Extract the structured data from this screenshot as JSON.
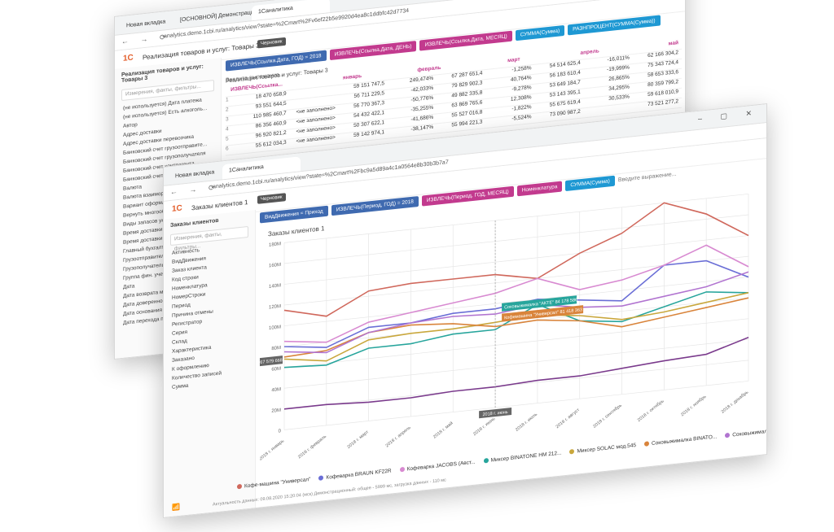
{
  "back_window": {
    "tabs": [
      "Новая вкладка",
      "[ОСНОВНОЙ] Демонстрационн...",
      "1Cаналитика"
    ],
    "url": "analytics.demo.1cbi.ru/analytics/view?state=%2Cmart%2Fv6ef22b5e9920d4ea8c1ddbfc42d7734",
    "app_title": "Реализация товаров и услуг: Товары 3",
    "draft_badge": "Черновик",
    "sidebar_title": "Реализация товаров и услуг: Товары 3",
    "search_placeholder": "Измерения, факты, фильтры...",
    "fields": [
      "(не используется) Дата платежа",
      "(не используется) Есть алкоголь...",
      "Автор",
      "Адрес доставки",
      "Адрес доставки перевозчика",
      "Банковский счет грузоотправите...",
      "Банковский счет грузополучателя",
      "Банковский счет контрагента",
      "Банковский счет организации",
      "Валюта",
      "Валюта взаиморасчетов",
      "Вариант оформления продажи",
      "Вернуть многооборотную тару",
      "Виды запасов указаны вручную",
      "Время доставки по",
      "Время доставки с",
      "Главный бухгалтер",
      "Грузоотправитель",
      "Грузополучатель",
      "Группа фин. учета расчетов",
      "Дата",
      "Дата возврата многооборотной тары",
      "Дата доверенности",
      "Дата основания",
      "Дата перехода права собственности"
    ],
    "chips": [
      {
        "label": "ИЗВЛЕЧЬ(Ссылка.Дата, ГОД) = 2018",
        "color": "blue"
      },
      {
        "label": "ИЗВЛЕЧЬ(Ссылка.Дата, ДЕНЬ)",
        "color": "mag"
      },
      {
        "label": "ИЗВЛЕЧЬ(Ссылка.Дата, МЕСЯЦ)",
        "color": "mag"
      },
      {
        "label": "СУММА(Сумма)",
        "color": "cyan"
      },
      {
        "label": "РАЗНПРОЦЕНТ(СУММА(Сумма))",
        "color": "cyan"
      }
    ],
    "expr_placeholder": "Введите выражение...",
    "pivot_title": "Реализация товаров и услуг: Товары 3",
    "pivot_header": [
      "ИЗВЛЕЧЬ(Ссылка...",
      "январь",
      "февраль",
      "март",
      "апрель",
      "май"
    ],
    "pivot_rows": [
      [
        "1",
        "18 470 658,9",
        "",
        "59 151 747,5",
        "249,474%",
        "67 287 651,4",
        "-1,258%",
        "54 514 625,4",
        "-16,011%",
        "62 166 304,2"
      ],
      [
        "2",
        "93 551 644,5",
        "",
        "56 711 229,5",
        "-42,033%",
        "79 829 902,3",
        "40,764%",
        "56 183 610,4",
        "-19,999%",
        "75 343 724,4"
      ],
      [
        "3",
        "110 985 460,7",
        "<не заполнено>",
        "56 770 367,3",
        "-50,776%",
        "49 882 335,8",
        "-9,278%",
        "53 649 184,7",
        "26,865%",
        "58 653 333,6"
      ],
      [
        "4",
        "86 356 460,9",
        "<не заполнено>",
        "54 432 422,1",
        "-35,255%",
        "63 869 765,6",
        "12,308%",
        "53 143 395,1",
        "34,295%",
        "80 359 799,2"
      ],
      [
        "5",
        "96 920 821,2",
        "<не заполнено>",
        "50 307 622,1",
        "-41,686%",
        "55 527 016,8",
        "-1,822%",
        "55 675 619,4",
        "30,533%",
        "59 618 010,9"
      ],
      [
        "6",
        "55 612 034,3",
        "<не заполнено>",
        "59 142 974,1",
        "-38,147%",
        "55 994 221,3",
        "-5,524%",
        "73 090 987,2",
        "",
        "73 521 277,2"
      ]
    ]
  },
  "front_window": {
    "tabs": [
      "Новая вкладка",
      "1Cаналитика"
    ],
    "url": "analytics.demo.1cbi.ru/analytics/view?state=%2Cmart%2Fbc9a5d89a4c1a0564e8b30b3b7a7",
    "app_title": "Заказы клиентов 1",
    "draft_badge": "Черновик",
    "sidebar_title": "Заказы клиентов",
    "search_placeholder": "Измерения, факты, фильтры...",
    "fields": [
      "Активность",
      "ВидДвижения",
      "Заказ клиента",
      "Код строки",
      "Номенклатура",
      "НомерСтроки",
      "Период",
      "Причина отмены",
      "Регистратор",
      "Серия",
      "Склад",
      "Характеристика",
      "Заказано",
      "К оформлению",
      "Количество записей",
      "Сумма"
    ],
    "chips": [
      {
        "label": "ВидДвижения = Приход",
        "color": "blue"
      },
      {
        "label": "ИЗВЛЕЧЬ(Период, ГОД) = 2018",
        "color": "blue"
      },
      {
        "label": "ИЗВЛЕЧЬ(Период, ГОД, МЕСЯЦ)",
        "color": "mag"
      },
      {
        "label": "Номенклатура",
        "color": "mag"
      },
      {
        "label": "СУММА(Сумма)",
        "color": "cyan"
      }
    ],
    "expr_placeholder": "Введите выражение...",
    "status": "Актуальность данных: 09.08.2020 15:20:04 (мск)   Демонстрационный: общее - 5999 мс, загрузка данных - 110 мс"
  },
  "chart_data": {
    "type": "line",
    "title": "Заказы клиентов 1",
    "categories": [
      "2018 г. январь",
      "2018 г. февраль",
      "2018 г. март",
      "2018 г. апрель",
      "2018 г. май",
      "2018 г. июнь",
      "2018 г. июль",
      "2018 г. август",
      "2018 г. сентябрь",
      "2018 г. октябрь",
      "2018 г. ноябрь",
      "2018 г. декабрь"
    ],
    "yticks": [
      "0",
      "20M",
      "40M",
      "60M",
      "80M",
      "100M",
      "120M",
      "140M",
      "160M",
      "180M"
    ],
    "ylim": [
      0,
      180
    ],
    "crosshair_x": "2018 г. июнь",
    "crosshair_y": "67 579 668",
    "tooltips": [
      "Соковыжималка \"АКТЕ\" 84 178 586",
      "Кофемашина \"Универсал\" 81 418 363"
    ],
    "series": [
      {
        "name": "Кофе-машина \"Универсал\"",
        "color": "#d0685c",
        "values": [
          115,
          105,
          125,
          128,
          128,
          128,
          120,
          140,
          155,
          180,
          165,
          140
        ]
      },
      {
        "name": "Кофеварка BRAUN KF22R",
        "color": "#6a6ed6",
        "values": [
          80,
          75,
          90,
          90,
          95,
          95,
          100,
          95,
          90,
          120,
          120,
          100
        ]
      },
      {
        "name": "Кофеварка JACOBS (Авст...",
        "color": "#d88ad1",
        "values": [
          85,
          80,
          95,
          100,
          105,
          110,
          120,
          105,
          110,
          120,
          135,
          110
        ]
      },
      {
        "name": "Миксер BINATONE HM 212...",
        "color": "#27a59c",
        "values": [
          60,
          58,
          70,
          70,
          75,
          75,
          95,
          75,
          70,
          80,
          90,
          85
        ]
      },
      {
        "name": "Миксер SOLAC мод.545",
        "color": "#c9a73c",
        "values": [
          68,
          62,
          78,
          80,
          80,
          82,
          85,
          80,
          72,
          75,
          80,
          85
        ]
      },
      {
        "name": "Соковыжималка BINATO...",
        "color": "#d9843b",
        "values": [
          70,
          72,
          85,
          88,
          85,
          78,
          80,
          75,
          65,
          70,
          75,
          80
        ]
      },
      {
        "name": "Соковыжималка SOLAC ...",
        "color": "#b174d0",
        "values": [
          75,
          70,
          85,
          90,
          92,
          90,
          95,
          88,
          85,
          90,
          95,
          105
        ]
      },
      {
        "name": "",
        "color": "#7a3a8c",
        "values": [
          20,
          20,
          18,
          18,
          20,
          20,
          22,
          22,
          25,
          28,
          30,
          42
        ]
      }
    ]
  }
}
